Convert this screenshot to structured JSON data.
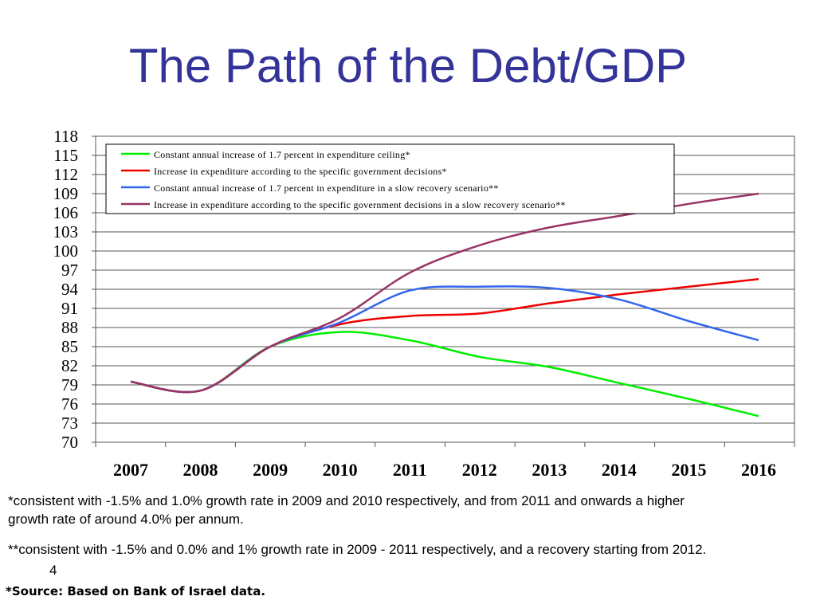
{
  "slide": {
    "title": "The Path of the Debt/GDP",
    "note1": "*consistent with -1.5% and 1.0% growth rate in 2009 and 2010 respectively, and from 2011 and onwards a   higher growth rate  of around 4.0% per annum.",
    "note2": "**consistent with -1.5% and 0.0% and 1% growth rate in 2009 - 2011 respectively, and a recovery starting from 2012.",
    "page_number": "4",
    "source": "*Source: Based on Bank of Israel data."
  },
  "chart_data": {
    "type": "line",
    "title": "The Path of the Debt/GDP",
    "xlabel": "",
    "ylabel": "",
    "categories": [
      "2007",
      "2008",
      "2009",
      "2010",
      "2011",
      "2012",
      "2013",
      "2014",
      "2015",
      "2016"
    ],
    "ylim": [
      70,
      118
    ],
    "yticks": [
      70,
      73,
      76,
      79,
      82,
      85,
      88,
      91,
      94,
      97,
      100,
      103,
      106,
      109,
      112,
      115,
      118
    ],
    "grid": true,
    "legend_position": "top-left",
    "series": [
      {
        "name": "Constant annual increase of 1.7 percent in expenditure ceiling*",
        "color": "#00ee00",
        "values": [
          79.5,
          78.1,
          85.0,
          87.3,
          86.0,
          83.4,
          81.8,
          79.3,
          76.8,
          74.1
        ]
      },
      {
        "name": "Increase in expenditure according to the specific government decisions*",
        "color": "#ee0000",
        "values": [
          79.5,
          78.1,
          85.0,
          88.5,
          89.8,
          90.2,
          91.8,
          93.2,
          94.4,
          95.6
        ]
      },
      {
        "name": "Constant annual increase of 1.7 percent in expenditure in a slow recovery scenario**",
        "color": "#3366ee",
        "values": [
          79.5,
          78.1,
          85.0,
          88.8,
          93.8,
          94.4,
          94.2,
          92.4,
          89.0,
          86.0
        ]
      },
      {
        "name": "Increase in expenditure according to the specific government decisions in a slow recovery scenario**",
        "color": "#993366",
        "values": [
          79.5,
          78.1,
          85.0,
          89.5,
          96.6,
          100.9,
          103.7,
          105.5,
          107.4,
          109.0
        ]
      }
    ]
  }
}
